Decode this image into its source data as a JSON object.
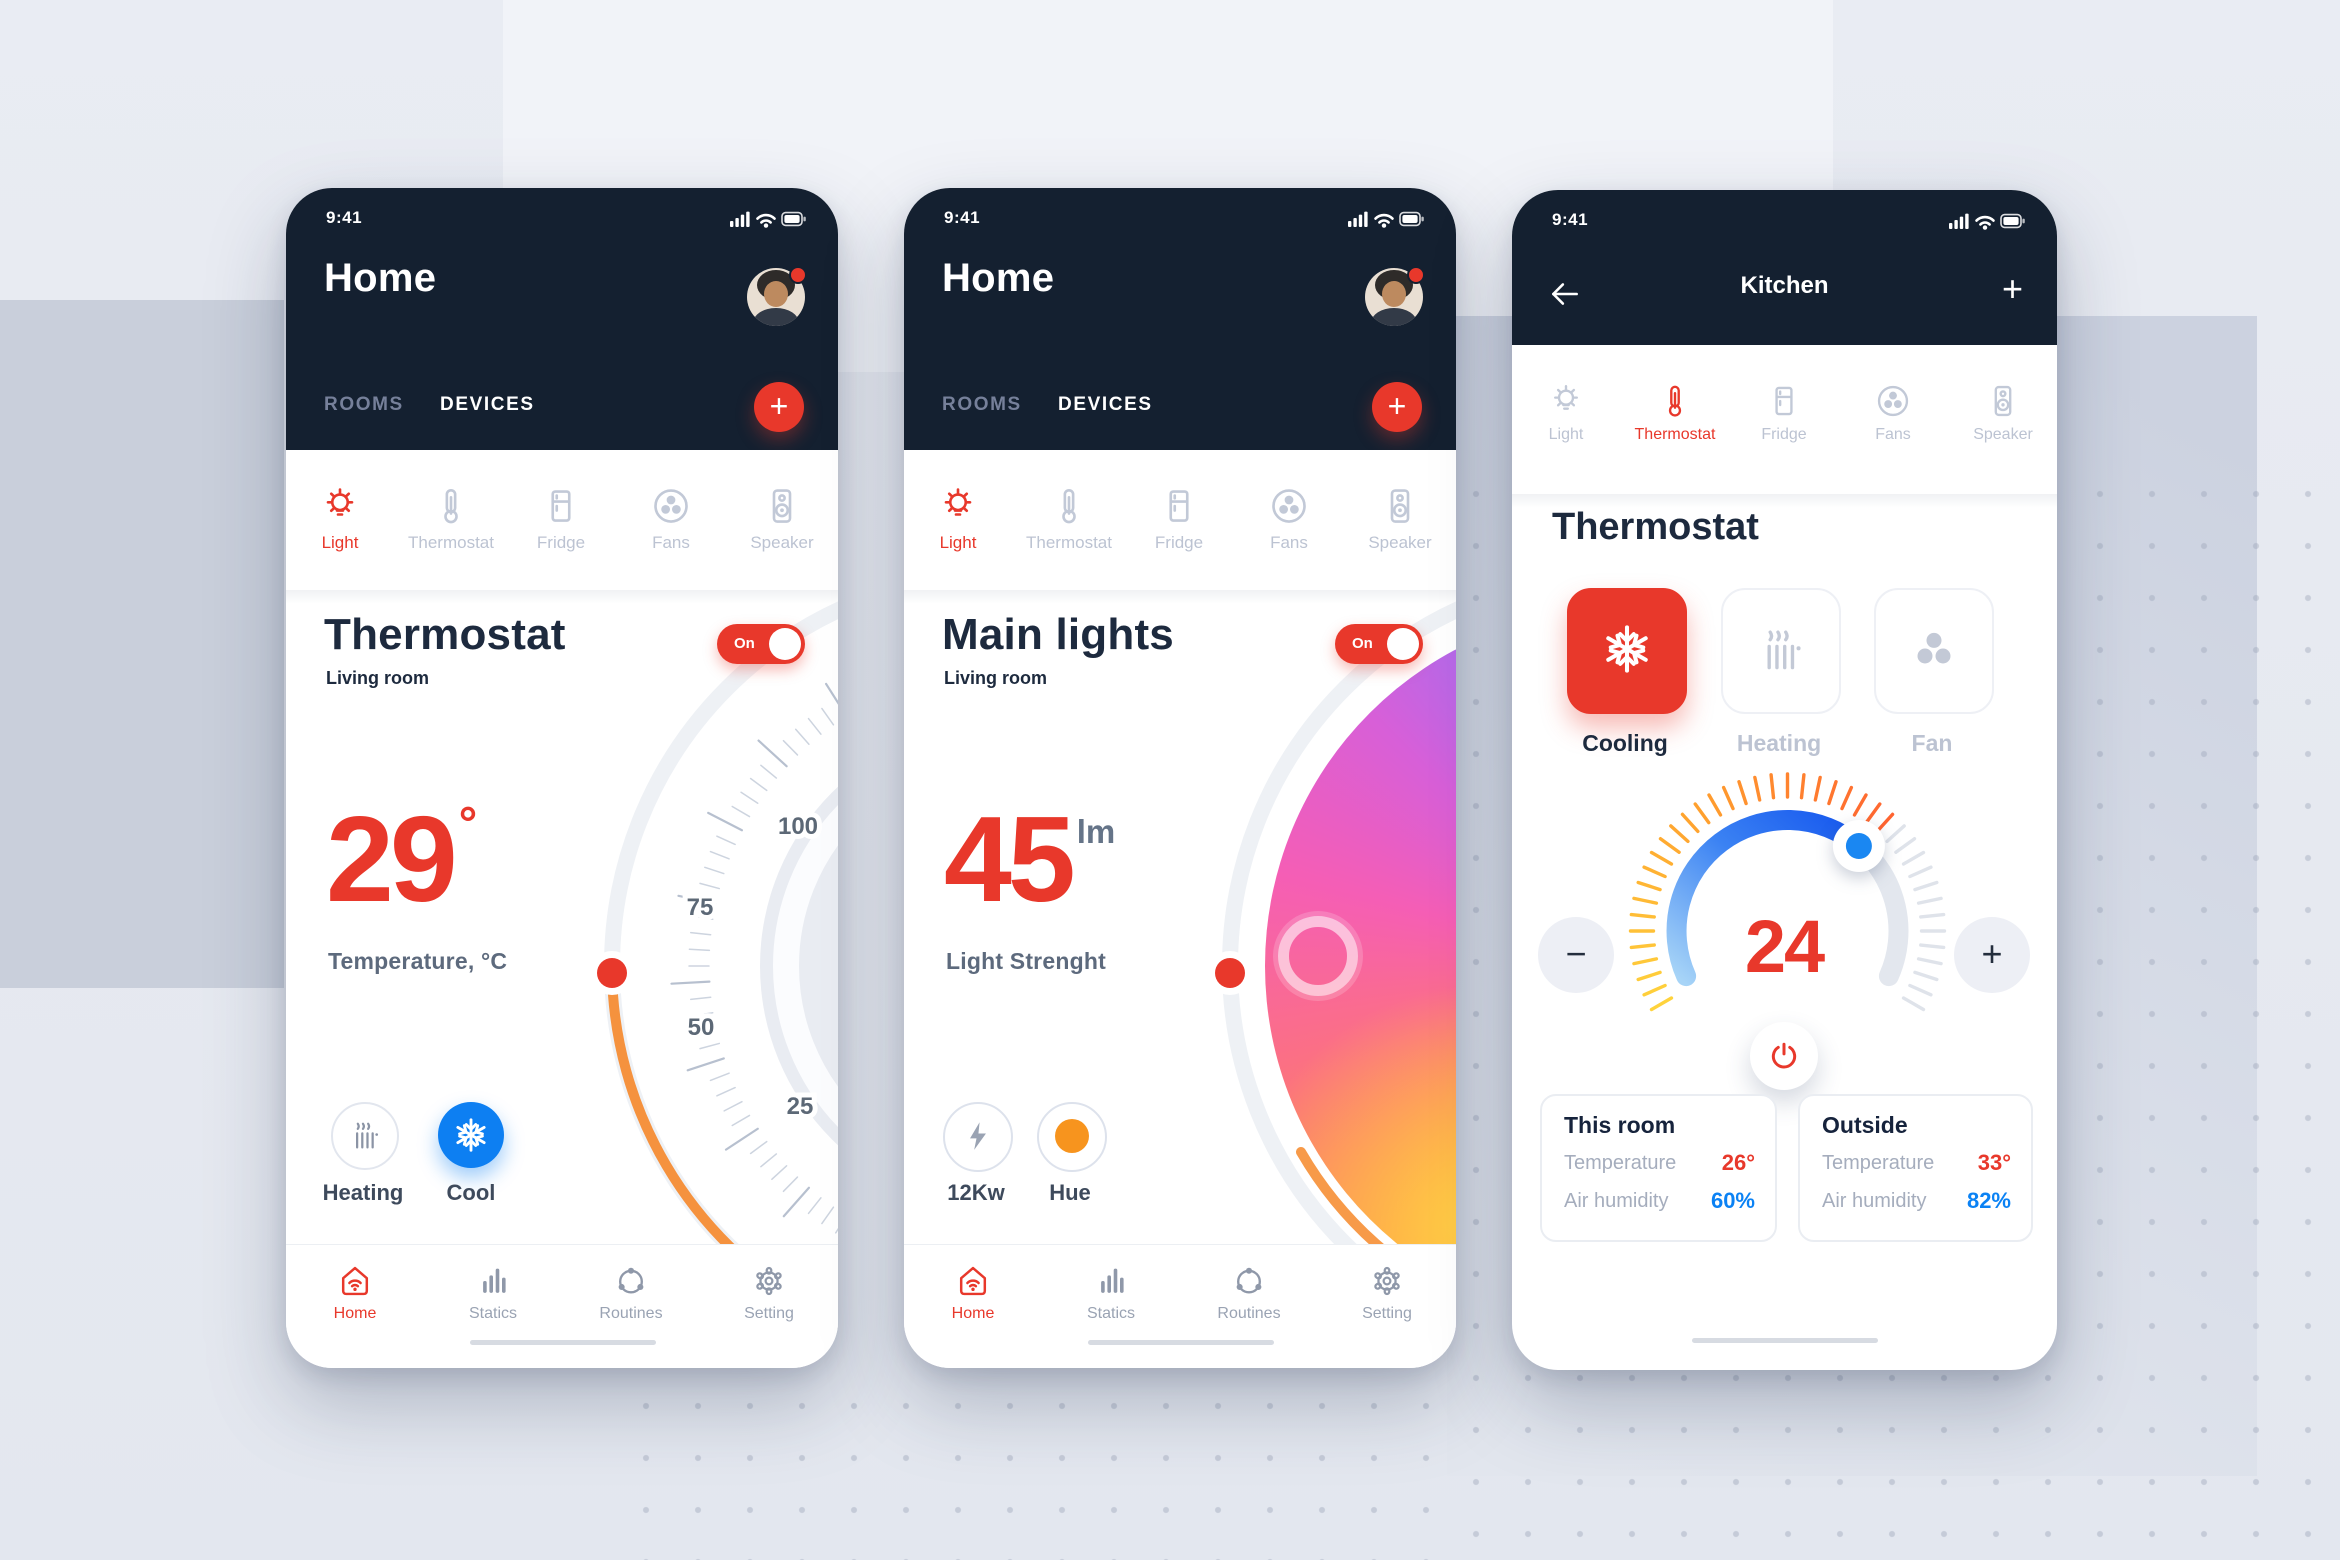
{
  "colors": {
    "accent_red": "#e8382b",
    "accent_blue": "#0d7ff2",
    "header_navy": "#142030",
    "dial_orange": "#f5923e",
    "humidity_blue": "#0b82f4",
    "title_navy": "#1d2a3e"
  },
  "status": {
    "time": "9:41"
  },
  "categories": {
    "items": [
      {
        "label": "Light",
        "icon": "light-bulb-icon"
      },
      {
        "label": "Thermostat",
        "icon": "thermometer-icon"
      },
      {
        "label": "Fridge",
        "icon": "fridge-icon"
      },
      {
        "label": "Fans",
        "icon": "fan-icon"
      },
      {
        "label": "Speaker",
        "icon": "speaker-icon"
      }
    ]
  },
  "nav": {
    "items": [
      {
        "label": "Home",
        "icon": "home-wifi-icon"
      },
      {
        "label": "Statics",
        "icon": "bar-chart-icon"
      },
      {
        "label": "Routines",
        "icon": "routines-icon"
      },
      {
        "label": "Setting",
        "icon": "gear-icon"
      }
    ]
  },
  "phone1": {
    "title": "Home",
    "tab_rooms": "ROOMS",
    "tab_devices": "DEVICES",
    "add_button": "+",
    "card": {
      "title": "Thermostat",
      "subtitle": "Living room",
      "toggle_label": "On",
      "value": "29",
      "unit": "°",
      "value_label": "Temperature, °C",
      "dial_labels": [
        "100",
        "75",
        "50",
        "25"
      ],
      "mode_heating": "Heating",
      "mode_cool": "Cool"
    }
  },
  "phone2": {
    "title": "Home",
    "tab_rooms": "ROOMS",
    "tab_devices": "DEVICES",
    "add_button": "+",
    "card": {
      "title": "Main lights",
      "subtitle": "Living room",
      "toggle_label": "On",
      "value": "45",
      "unit": "lm",
      "value_label": "Light Strenght",
      "mode_power": "12Kw",
      "mode_hue": "Hue"
    }
  },
  "phone3": {
    "title": "Kitchen",
    "add_button": "+",
    "heading": "Thermostat",
    "modes": [
      {
        "label": "Cooling",
        "icon": "snowflake-icon"
      },
      {
        "label": "Heating",
        "icon": "radiator-icon"
      },
      {
        "label": "Fan",
        "icon": "fan-blades-icon"
      }
    ],
    "temperature": "24",
    "minus_button": "−",
    "plus_button": "+",
    "info_cards": [
      {
        "title": "This room",
        "rows": [
          {
            "label": "Temperature",
            "value": "26°"
          },
          {
            "label": "Air humidity",
            "value": "60%"
          }
        ]
      },
      {
        "title": "Outside",
        "rows": [
          {
            "label": "Temperature",
            "value": "33°"
          },
          {
            "label": "Air humidity",
            "value": "82%"
          }
        ]
      }
    ]
  }
}
